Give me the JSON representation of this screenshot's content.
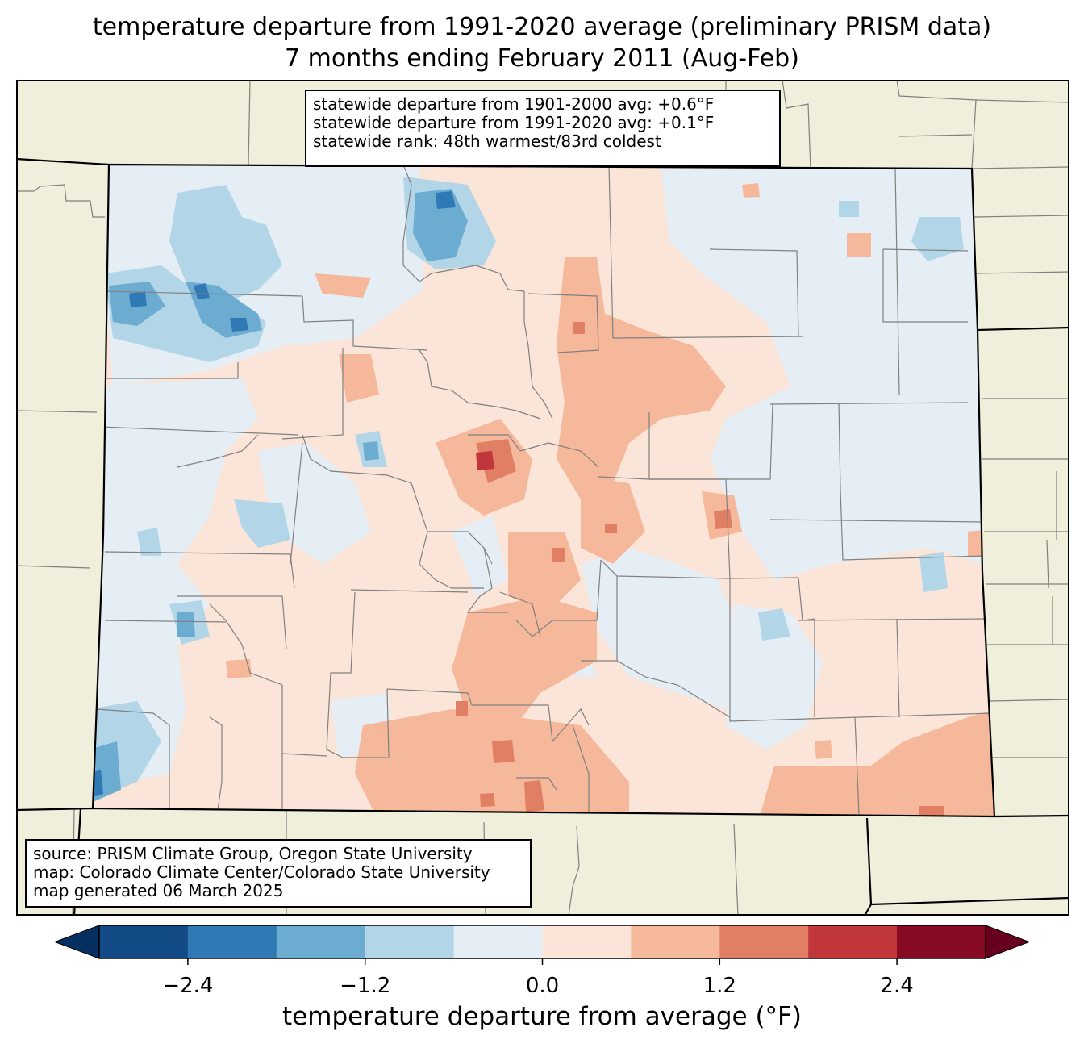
{
  "title": {
    "line1": "temperature departure from 1991-2020 average (preliminary PRISM data)",
    "line2": "7 months ending February 2011 (Aug-Feb)"
  },
  "stats": {
    "line1": "statewide departure from 1901-2000 avg: +0.6°F",
    "line2": "statewide departure from 1991-2020 avg: +0.1°F",
    "line3": "statewide rank: 48th warmest/83rd coldest"
  },
  "source": {
    "line1": "source: PRISM Climate Group, Oregon State University",
    "line2": "map: Colorado Climate Center/Colorado State University",
    "line3": "map generated 06 March 2025"
  },
  "colorbar": {
    "label": "temperature departure from average (°F)",
    "ticks": [
      {
        "value": -2.4,
        "label": "−2.4"
      },
      {
        "value": -1.2,
        "label": "−1.2"
      },
      {
        "value": 0.0,
        "label": "0.0"
      },
      {
        "value": 1.2,
        "label": "1.2"
      },
      {
        "value": 2.4,
        "label": "2.4"
      }
    ],
    "range": [
      -3.0,
      3.0
    ],
    "levels": [
      -3.0,
      -2.4,
      -1.8,
      -1.2,
      -0.6,
      0.0,
      0.6,
      1.2,
      1.8,
      2.4,
      3.0
    ],
    "colors": [
      "#134b87",
      "#2f79b5",
      "#6bacd0",
      "#b2d5e8",
      "#e6eef5",
      "#fbe5d9",
      "#f6b89b",
      "#e17f65",
      "#c0363a",
      "#870a23"
    ],
    "under_color": "#053061",
    "over_color": "#67001f"
  },
  "map_colors": {
    "background": "#f0efdc",
    "county_line": "#808080",
    "state_line": "#000000"
  }
}
